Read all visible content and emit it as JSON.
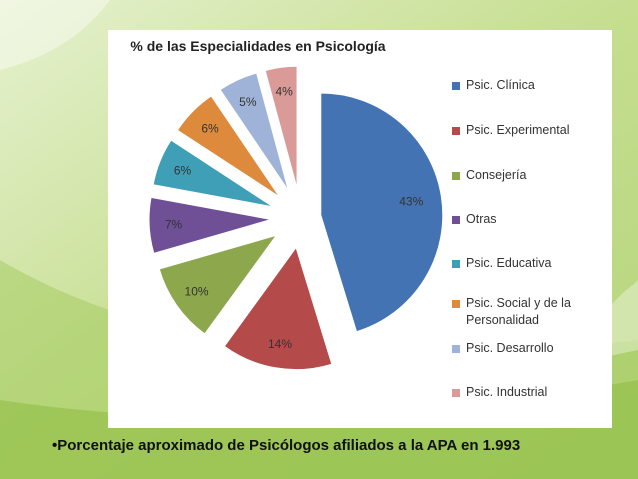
{
  "chart_data": {
    "type": "pie",
    "title": "% de las Especialidades en Psicología",
    "categories": [
      "Psic. Clínica",
      "Psic. Experimental",
      "Consejería",
      "Otras",
      "Psic. Educativa",
      "Psic. Social y de la Personalidad",
      "Psic. Desarrollo",
      "Psic. Industrial"
    ],
    "values": [
      43,
      14,
      10,
      7,
      6,
      6,
      5,
      4
    ],
    "data_labels": [
      "43%",
      "14%",
      "10%",
      "7%",
      "6%",
      "6%",
      "5%",
      "4%"
    ],
    "colors": [
      "#4473b4",
      "#b54a4a",
      "#8da84c",
      "#6f4f96",
      "#3f9fb7",
      "#dd8a3d",
      "#9fb3d8",
      "#d99a98"
    ],
    "legend_position": "right",
    "exploded": true
  },
  "footnote": "•Porcentaje aproximado de Psicólogos afiliados a la APA en 1.993"
}
